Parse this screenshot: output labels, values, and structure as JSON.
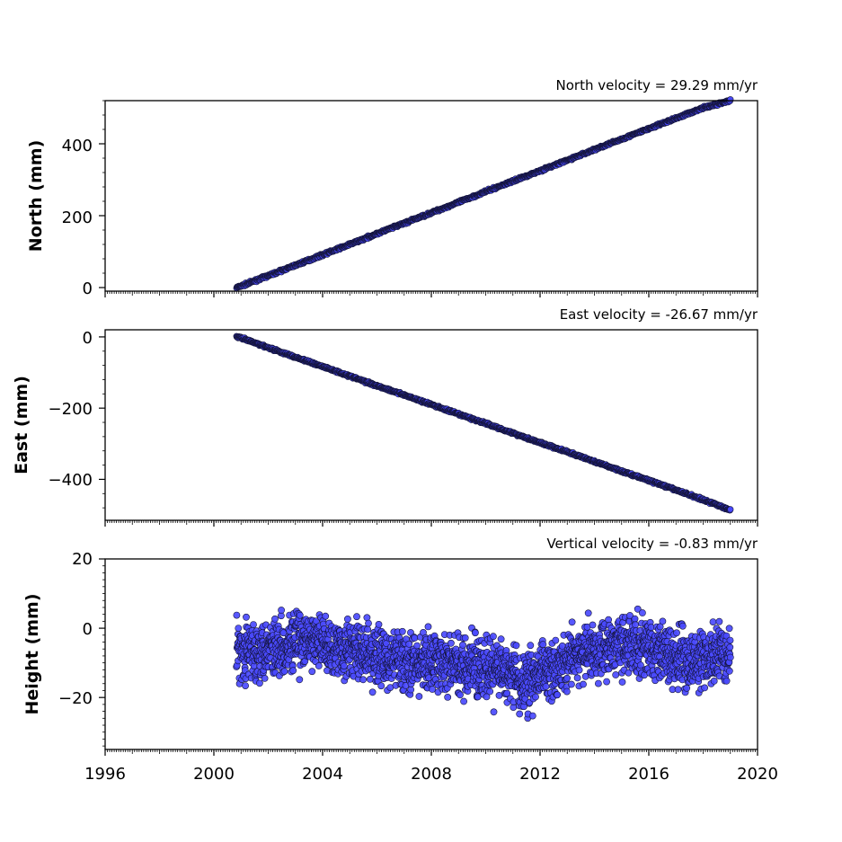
{
  "colors": {
    "marker_fill": "#4a4aff",
    "marker_edge": "#14143a",
    "axis": "#000000"
  },
  "chart_data": [
    {
      "type": "scatter",
      "title": "North velocity = 29.29 mm/yr",
      "xlabel": "",
      "ylabel": "North (mm)",
      "xlim": [
        "1996",
        "2020"
      ],
      "ylim": [
        -10,
        520
      ],
      "yticks": [
        0,
        200,
        400
      ],
      "ytick_labels": [
        "0",
        "200",
        "400"
      ],
      "xtick_labels_shown": false,
      "grid": false,
      "series": [
        {
          "x": [
            "2000-11",
            "2001",
            "2002",
            "2003",
            "2004",
            "2005",
            "2006",
            "2007",
            "2008",
            "2009",
            "2010",
            "2011",
            "2012",
            "2013",
            "2014",
            "2015",
            "2016",
            "2017",
            "2018",
            "2019-01"
          ],
          "y": [
            0,
            4,
            33,
            62,
            91,
            120,
            150,
            179,
            208,
            237,
            267,
            296,
            325,
            354,
            384,
            413,
            442,
            471,
            500,
            520
          ]
        }
      ]
    },
    {
      "type": "scatter",
      "title": "East velocity = -26.67 mm/yr",
      "xlabel": "",
      "ylabel": "East (mm)",
      "xlim": [
        "1996",
        "2020"
      ],
      "ylim": [
        -515,
        20
      ],
      "yticks": [
        0,
        -200,
        -400
      ],
      "ytick_labels": [
        "0",
        "−200",
        "−400"
      ],
      "xtick_labels_shown": false,
      "grid": false,
      "series": [
        {
          "x": [
            "2000-11",
            "2001",
            "2002",
            "2003",
            "2004",
            "2005",
            "2006",
            "2007",
            "2008",
            "2009",
            "2010",
            "2011",
            "2012",
            "2013",
            "2014",
            "2015",
            "2016",
            "2017",
            "2018",
            "2019-01"
          ],
          "y": [
            0,
            -3,
            -30,
            -57,
            -83,
            -110,
            -137,
            -163,
            -190,
            -217,
            -243,
            -270,
            -297,
            -323,
            -350,
            -377,
            -403,
            -430,
            -457,
            -486
          ]
        }
      ]
    },
    {
      "type": "scatter",
      "title": "Vertical velocity = -0.83 mm/yr",
      "xlabel": "",
      "ylabel": "Height (mm)",
      "xlim": [
        "1996",
        "2020"
      ],
      "ylim": [
        -35,
        20
      ],
      "yticks": [
        20,
        0,
        -20
      ],
      "ytick_labels": [
        "20",
        "0",
        "−20"
      ],
      "xticks": [
        "1996",
        "2000",
        "2004",
        "2008",
        "2012",
        "2016",
        "2020"
      ],
      "xtick_labels": [
        "1996",
        "2000",
        "2004",
        "2008",
        "2012",
        "2016",
        "2020"
      ],
      "grid": false,
      "series": [
        {
          "x": [
            "2000-11",
            "2001-06",
            "2002",
            "2002-06",
            "2003",
            "2003-06",
            "2004",
            "2004-06",
            "2005",
            "2005-06",
            "2006",
            "2006-06",
            "2007",
            "2007-06",
            "2008",
            "2008-06",
            "2009",
            "2009-06",
            "2010",
            "2010-06",
            "2011",
            "2011-04",
            "2011-08",
            "2012",
            "2012-06",
            "2013",
            "2013-06",
            "2014",
            "2014-06",
            "2015",
            "2015-06",
            "2016",
            "2016-06",
            "2017",
            "2017-06",
            "2018",
            "2018-06",
            "2019-01"
          ],
          "y": [
            -6,
            -7,
            -5,
            -5,
            -4,
            -4,
            -4,
            -5,
            -6,
            -7,
            -8,
            -9,
            -9,
            -10,
            -10,
            -10,
            -11,
            -11,
            -12,
            -12,
            -13,
            -17,
            -15,
            -13,
            -11,
            -9,
            -8,
            -6,
            -5,
            -5,
            -5,
            -6,
            -7,
            -8,
            -10,
            -9,
            -8,
            -7
          ]
        }
      ]
    }
  ]
}
